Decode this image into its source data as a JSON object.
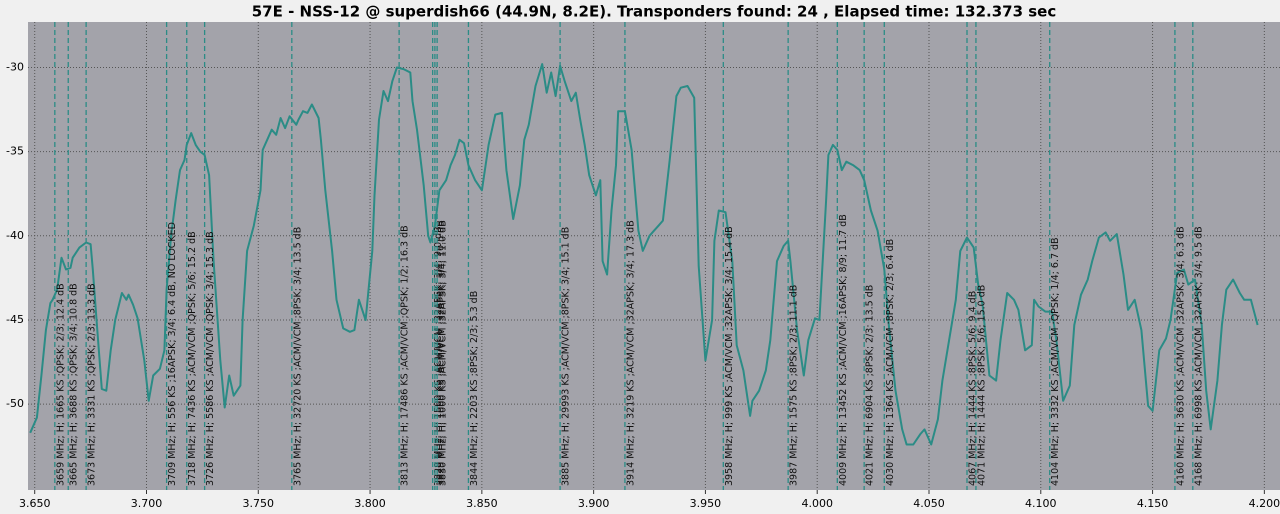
{
  "chart_data": {
    "type": "line",
    "title": "57E - NSS-12 @ superdish66 (44.9N, 8.2E). Transponders found: 24 , Elapsed time: 132.373 sec",
    "xlim": [
      3.647,
      4.207
    ],
    "ylim": [
      -55.1,
      -27.3
    ],
    "xticks": [
      {
        "value": 3.65,
        "label": "3.650"
      },
      {
        "value": 3.7,
        "label": "3.700"
      },
      {
        "value": 3.75,
        "label": "3.750"
      },
      {
        "value": 3.8,
        "label": "3.800"
      },
      {
        "value": 3.85,
        "label": "3.850"
      },
      {
        "value": 3.9,
        "label": "3.900"
      },
      {
        "value": 3.95,
        "label": "3.950"
      },
      {
        "value": 4.0,
        "label": "4.000"
      },
      {
        "value": 4.05,
        "label": "4.050"
      },
      {
        "value": 4.1,
        "label": "4.100"
      },
      {
        "value": 4.15,
        "label": "4.150"
      },
      {
        "value": 4.2,
        "label": "4.200"
      }
    ],
    "yticks": [
      -30,
      -35,
      -40,
      -45,
      -50
    ],
    "grid": true,
    "series": [
      {
        "color": "#2b8c86",
        "x": [
          3.648,
          3.651,
          3.653,
          3.655,
          3.657,
          3.658,
          3.66,
          3.662,
          3.664,
          3.666,
          3.667,
          3.67,
          3.673,
          3.675,
          3.676,
          3.678,
          3.68,
          3.682,
          3.684,
          3.686,
          3.689,
          3.691,
          3.692,
          3.694,
          3.696,
          3.699,
          3.701,
          3.703,
          3.706,
          3.708,
          3.709,
          3.711,
          3.713,
          3.715,
          3.717,
          3.718,
          3.72,
          3.722,
          3.724,
          3.726,
          3.728,
          3.73,
          3.733,
          3.735,
          3.737,
          3.739,
          3.742,
          3.743,
          3.745,
          3.748,
          3.751,
          3.752,
          3.754,
          3.756,
          3.758,
          3.76,
          3.762,
          3.764,
          3.767,
          3.768,
          3.77,
          3.772,
          3.774,
          3.777,
          3.778,
          3.78,
          3.783,
          3.785,
          3.788,
          3.791,
          3.793,
          3.795,
          3.798,
          3.801,
          3.802,
          3.804,
          3.806,
          3.808,
          3.81,
          3.812,
          3.815,
          3.818,
          3.819,
          3.821,
          3.824,
          3.826,
          3.827,
          3.829,
          3.831,
          3.834,
          3.836,
          3.838,
          3.84,
          3.842,
          3.844,
          3.847,
          3.85,
          3.853,
          3.856,
          3.859,
          3.861,
          3.864,
          3.867,
          3.869,
          3.871,
          3.874,
          3.877,
          3.879,
          3.881,
          3.883,
          3.885,
          3.887,
          3.89,
          3.892,
          3.894,
          3.896,
          3.898,
          3.901,
          3.903,
          3.904,
          3.906,
          3.908,
          3.91,
          3.911,
          3.914,
          3.917,
          3.92,
          3.922,
          3.925,
          3.927,
          3.929,
          3.931,
          3.934,
          3.937,
          3.939,
          3.942,
          3.945,
          3.947,
          3.95,
          3.953,
          3.954,
          3.956,
          3.959,
          3.962,
          3.964,
          3.967,
          3.97,
          3.971,
          3.974,
          3.977,
          3.979,
          3.982,
          3.985,
          3.987,
          3.988,
          3.991,
          3.994,
          3.996,
          3.999,
          4.001,
          4.004,
          4.005,
          4.007,
          4.009,
          4.011,
          4.013,
          4.016,
          4.019,
          4.021,
          4.024,
          4.027,
          4.03,
          4.032,
          4.035,
          4.038,
          4.04,
          4.043,
          4.046,
          4.048,
          4.051,
          4.054,
          4.056,
          4.059,
          4.062,
          4.064,
          4.067,
          4.07,
          4.072,
          4.074,
          4.077,
          4.08,
          4.082,
          4.085,
          4.088,
          4.09,
          4.093,
          4.096,
          4.097,
          4.099,
          4.102,
          4.105,
          4.107,
          4.11,
          4.113,
          4.115,
          4.118,
          4.121,
          4.123,
          4.126,
          4.129,
          4.131,
          4.134,
          4.137,
          4.139,
          4.142,
          4.145,
          4.148,
          4.15,
          4.153,
          4.156,
          4.158,
          4.161,
          4.164,
          4.166,
          4.169,
          4.172,
          4.174,
          4.176,
          4.179,
          4.181,
          4.183,
          4.186,
          4.189,
          4.191,
          4.194,
          4.197
        ],
        "values": [
          -51.7,
          -50.8,
          -48.3,
          -45.6,
          -44.0,
          -43.8,
          -43.2,
          -41.3,
          -42.0,
          -41.9,
          -41.3,
          -40.7,
          -40.4,
          -40.5,
          -42.0,
          -45.6,
          -49.1,
          -49.2,
          -46.8,
          -45.0,
          -43.4,
          -43.8,
          -43.5,
          -44.1,
          -44.9,
          -47.4,
          -49.8,
          -48.3,
          -47.9,
          -46.8,
          -43.2,
          -40.0,
          -37.9,
          -36.1,
          -35.5,
          -34.6,
          -33.9,
          -34.6,
          -35.0,
          -35.2,
          -36.4,
          -41.5,
          -47.4,
          -50.2,
          -48.3,
          -49.5,
          -48.9,
          -45.0,
          -40.9,
          -39.4,
          -37.3,
          -34.9,
          -34.3,
          -33.7,
          -34.0,
          -33.0,
          -33.6,
          -32.9,
          -33.4,
          -33.1,
          -32.6,
          -32.7,
          -32.2,
          -33.0,
          -34.3,
          -37.3,
          -40.9,
          -43.8,
          -45.5,
          -45.7,
          -45.6,
          -43.8,
          -45.0,
          -40.9,
          -37.6,
          -33.1,
          -31.4,
          -32.0,
          -30.8,
          -30.0,
          -30.1,
          -30.3,
          -32.0,
          -33.7,
          -37.0,
          -40.0,
          -40.4,
          -39.4,
          -37.3,
          -36.7,
          -35.8,
          -35.2,
          -34.3,
          -34.5,
          -35.8,
          -36.7,
          -37.3,
          -34.6,
          -32.8,
          -32.7,
          -36.1,
          -39.0,
          -37.0,
          -34.3,
          -33.4,
          -31.1,
          -29.8,
          -31.5,
          -30.3,
          -31.7,
          -29.9,
          -30.8,
          -32.0,
          -31.5,
          -33.1,
          -34.6,
          -36.4,
          -37.6,
          -36.7,
          -41.5,
          -42.3,
          -38.5,
          -35.8,
          -32.6,
          -32.6,
          -34.9,
          -39.7,
          -40.9,
          -40.0,
          -39.7,
          -39.4,
          -39.1,
          -35.5,
          -31.7,
          -31.2,
          -31.1,
          -31.8,
          -41.8,
          -47.4,
          -45.0,
          -40.3,
          -38.5,
          -38.6,
          -41.5,
          -46.5,
          -48.0,
          -50.7,
          -49.8,
          -49.2,
          -48.0,
          -46.2,
          -41.5,
          -40.6,
          -40.3,
          -41.5,
          -45.6,
          -48.3,
          -46.2,
          -44.9,
          -45.0,
          -37.9,
          -35.2,
          -34.6,
          -34.9,
          -36.1,
          -35.6,
          -35.8,
          -36.1,
          -36.7,
          -38.5,
          -39.7,
          -42.0,
          -45.3,
          -49.2,
          -51.5,
          -52.4,
          -52.4,
          -51.8,
          -51.5,
          -52.4,
          -50.9,
          -48.6,
          -46.2,
          -43.8,
          -40.9,
          -40.1,
          -40.7,
          -42.9,
          -44.1,
          -48.3,
          -48.6,
          -46.2,
          -43.4,
          -43.8,
          -44.4,
          -46.8,
          -46.5,
          -43.8,
          -44.2,
          -44.5,
          -44.5,
          -46.2,
          -49.8,
          -48.9,
          -45.3,
          -43.5,
          -42.6,
          -41.5,
          -40.1,
          -39.8,
          -40.3,
          -39.9,
          -42.3,
          -44.4,
          -43.8,
          -45.6,
          -50.1,
          -50.4,
          -46.8,
          -46.1,
          -45.0,
          -42.2,
          -42.0,
          -42.9,
          -42.6,
          -45.3,
          -49.2,
          -51.5,
          -48.6,
          -45.3,
          -43.2,
          -42.6,
          -43.4,
          -43.8,
          -43.8,
          -45.3
        ]
      }
    ],
    "markers": [
      {
        "x": 3.659,
        "label": "3659 MHz; H; 1665 KS ;QPSK; 2/3; 12.4 dB"
      },
      {
        "x": 3.665,
        "label": "3665 MHz; H; 3688 KS ;QPSK; 3/4; 10.8 dB"
      },
      {
        "x": 3.673,
        "label": "3673 MHz; H; 3331 KS ;QPSK; 2/3; 13.3 dB"
      },
      {
        "x": 3.709,
        "label": "3709 MHz; H; 556 KS ;16APSK; 3/4; 6.4 dB, NO LOCKED"
      },
      {
        "x": 3.718,
        "label": "3718 MHz; H; 7436 KS ;ACM/VCM ;QPSK; 5/6; 15.2 dB"
      },
      {
        "x": 3.726,
        "label": "3726 MHz; H; 5586 KS ;ACM/VCM ;QPSK; 3/4; 15.3 dB"
      },
      {
        "x": 3.765,
        "label": "3765 MHz; H; 32720 KS ;ACM/VCM ;8PSK; 3/4; 13.5 dB"
      },
      {
        "x": 3.813,
        "label": "3813 MHz; H; 17486 KS ;ACM/VCM ;QPSK; 1/2; 16.3 dB"
      },
      {
        "x": 3.828,
        "label": "3828 MHz; H; 1500 KS ;ACM/VCM ;32APSK; 3/4; 9.0 dB"
      },
      {
        "x": 3.829,
        "label": "3829 MHz; H; 1000 KS ;ACM/VCM ;32APSK; 3/4; 10.5 dB"
      },
      {
        "x": 3.83,
        "label": "3830 MHz; H; 1000 KS ;ACM/VCM ;32APSK; 3/4; 11.0 dB"
      },
      {
        "x": 3.844,
        "label": "3844 MHz; H; 2203 KS ;8PSK; 2/3; 5.3 dB"
      },
      {
        "x": 3.885,
        "label": "3885 MHz; H; 29993 KS ;ACM/VCM ;8PSK; 3/4; 15.1 dB"
      },
      {
        "x": 3.914,
        "label": "3914 MHz; H; 3219 KS ;ACM/VCM ;32APSK; 3/4; 17.3 dB"
      },
      {
        "x": 3.958,
        "label": "3958 MHz; H; 999 KS ;ACM/VCM ;32APSK; 3/4; 15.4 dB"
      },
      {
        "x": 3.987,
        "label": "3987 MHz; H; 1575 KS ;8PSK; 2/3; 11.1 dB"
      },
      {
        "x": 4.009,
        "label": "4009 MHz; H; 13452 KS ;ACM/VCM ;16APSK; 8/9; 11.7 dB"
      },
      {
        "x": 4.021,
        "label": "4021 MHz; H; 6904 KS ;8PSK; 2/3; 13.5 dB"
      },
      {
        "x": 4.03,
        "label": "4030 MHz; H; 1364 KS ;ACM/VCM ;8PSK; 2/3; 6.4 dB"
      },
      {
        "x": 4.067,
        "label": "4067 MHz; H; 1444 KS ;8PSK; 5/6; 9.4 dB"
      },
      {
        "x": 4.071,
        "label": "4071 MHz; H; 1444 KS ;8PSK; 5/6; 15.0 dB"
      },
      {
        "x": 4.104,
        "label": "4104 MHz; H; 3332 KS ;ACM/VCM ;QPSK; 1/4; 6.7 dB"
      },
      {
        "x": 4.16,
        "label": "4160 MHz; H; 3630 KS ;ACM/VCM ;32APSK; 3/4; 6.3 dB"
      },
      {
        "x": 4.168,
        "label": "4168 MHz; H; 6998 KS ;ACM/VCM ;32APSK; 3/4; 9.5 dB"
      }
    ]
  }
}
